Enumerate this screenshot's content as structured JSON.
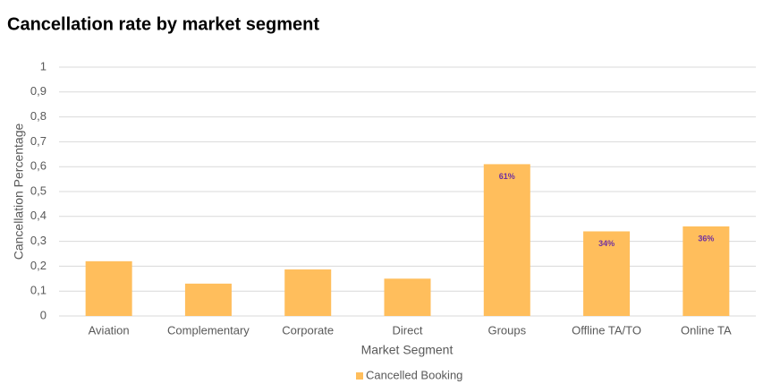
{
  "chart_data": {
    "type": "bar",
    "title": "Cancellation rate by market segment",
    "x_label": "Market Segment",
    "y_label": "Cancellation Percentage",
    "categories": [
      "Aviation",
      "Complementary",
      "Corporate",
      "Direct",
      "Groups",
      "Offline TA/TO",
      "Online TA"
    ],
    "series": [
      {
        "name": "Cancelled Booking",
        "color": "#ffbe5c",
        "values": [
          0.22,
          0.13,
          0.187,
          0.15,
          0.61,
          0.34,
          0.36
        ],
        "value_labels": [
          null,
          null,
          null,
          null,
          "61%",
          "34%",
          "36%"
        ]
      }
    ],
    "ylim": [
      0,
      1
    ],
    "yticks": [
      0,
      {
        "value": 0.1,
        "label": "0,1"
      },
      {
        "value": 0.2,
        "label": "0,2"
      },
      {
        "value": 0.3,
        "label": "0,3"
      },
      {
        "value": 0.4,
        "label": "0,4"
      },
      {
        "value": 0.5,
        "label": "0,5"
      },
      {
        "value": 0.6,
        "label": "0,6"
      },
      {
        "value": 0.7,
        "label": "0,7"
      },
      {
        "value": 0.8,
        "label": "0,8"
      },
      {
        "value": 0.9,
        "label": "0,9"
      },
      1
    ],
    "grid": true,
    "legend": "bottom"
  }
}
